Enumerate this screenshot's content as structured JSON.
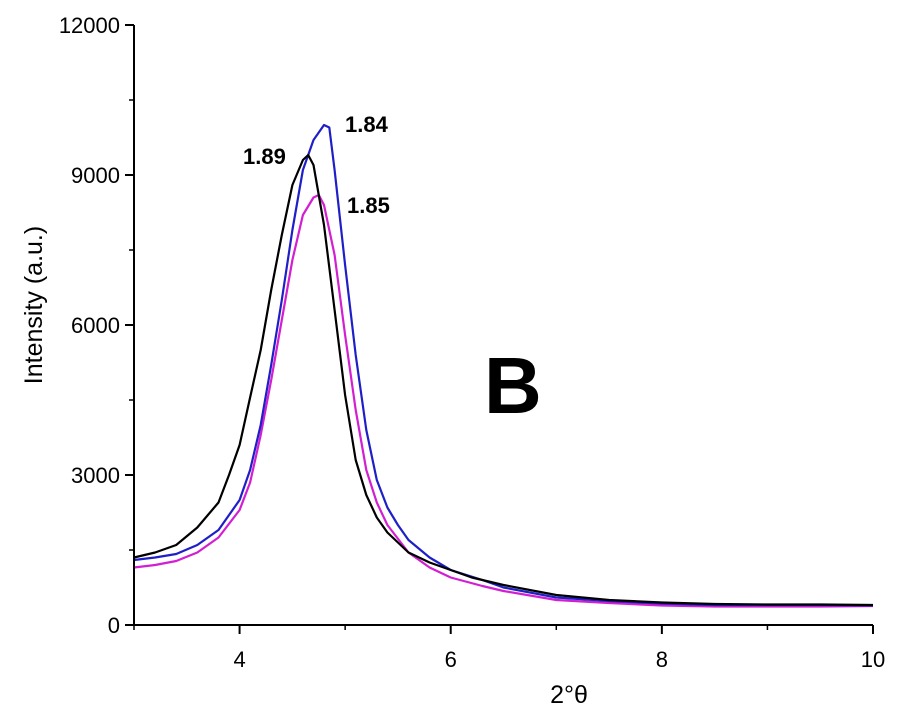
{
  "chart_data": {
    "type": "line",
    "xlabel": "2°θ",
    "ylabel": "Intensity (a.u.)",
    "xlim": [
      3,
      10
    ],
    "ylim": [
      0,
      12000
    ],
    "xticks": [
      4,
      6,
      8,
      10
    ],
    "yticks": [
      0,
      3000,
      6000,
      9000,
      12000
    ],
    "panel_label": "B",
    "grid": false,
    "legend": "none",
    "annotations": [
      {
        "text": "1.84",
        "x": 5.0,
        "y": 10000
      },
      {
        "text": "1.89",
        "x": 4.3,
        "y": 9350
      },
      {
        "text": "1.85",
        "x": 5.0,
        "y": 8350
      }
    ],
    "series": [
      {
        "color": "#000000",
        "x": [
          3.0,
          3.2,
          3.4,
          3.6,
          3.8,
          3.9,
          4.0,
          4.1,
          4.2,
          4.3,
          4.4,
          4.5,
          4.6,
          4.65,
          4.7,
          4.8,
          4.9,
          5.0,
          5.1,
          5.2,
          5.3,
          5.4,
          5.6,
          5.8,
          6.0,
          6.2,
          6.5,
          7.0,
          7.5,
          8.0,
          8.5,
          9.0,
          9.5,
          10.0
        ],
        "y": [
          1350,
          1450,
          1600,
          1950,
          2450,
          3000,
          3600,
          4550,
          5500,
          6700,
          7800,
          8800,
          9300,
          9400,
          9200,
          8000,
          6300,
          4600,
          3300,
          2600,
          2150,
          1850,
          1450,
          1250,
          1100,
          950,
          800,
          600,
          500,
          450,
          420,
          410,
          410,
          400
        ]
      },
      {
        "color": "#1f1fc8",
        "x": [
          3.0,
          3.2,
          3.4,
          3.6,
          3.8,
          4.0,
          4.1,
          4.2,
          4.3,
          4.4,
          4.5,
          4.6,
          4.7,
          4.8,
          4.85,
          4.9,
          5.0,
          5.1,
          5.2,
          5.3,
          5.4,
          5.5,
          5.6,
          5.8,
          6.0,
          6.3,
          6.5,
          7.0,
          7.5,
          8.0,
          8.5,
          9.0,
          9.5,
          10.0
        ],
        "y": [
          1300,
          1350,
          1420,
          1600,
          1900,
          2500,
          3100,
          4000,
          5200,
          6500,
          7900,
          9100,
          9700,
          10000,
          9950,
          9100,
          7200,
          5400,
          3900,
          2900,
          2350,
          2000,
          1700,
          1350,
          1100,
          900,
          750,
          550,
          480,
          430,
          400,
          400,
          400,
          390
        ]
      },
      {
        "color": "#d21fd2",
        "x": [
          3.0,
          3.2,
          3.4,
          3.6,
          3.8,
          4.0,
          4.1,
          4.2,
          4.3,
          4.4,
          4.5,
          4.6,
          4.7,
          4.75,
          4.8,
          4.9,
          5.0,
          5.1,
          5.2,
          5.3,
          5.4,
          5.6,
          5.8,
          6.0,
          6.3,
          6.5,
          7.0,
          7.5,
          8.0,
          8.5,
          9.0,
          9.5,
          10.0
        ],
        "y": [
          1150,
          1200,
          1280,
          1450,
          1750,
          2300,
          2850,
          3800,
          4900,
          6100,
          7300,
          8200,
          8550,
          8600,
          8400,
          7400,
          5800,
          4300,
          3100,
          2450,
          2000,
          1450,
          1150,
          950,
          780,
          680,
          500,
          440,
          390,
          370,
          370,
          370,
          380
        ]
      }
    ]
  }
}
